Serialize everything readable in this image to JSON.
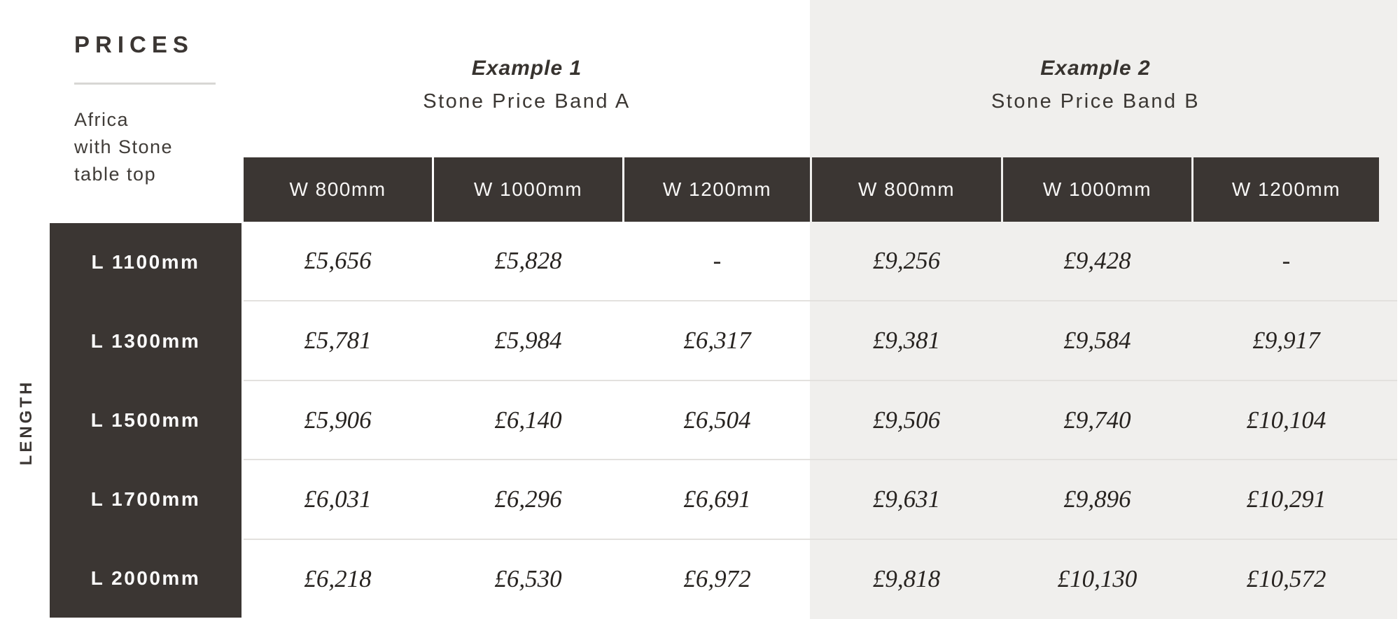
{
  "title_block": {
    "title": "PRICES",
    "product_lines": [
      "Africa",
      "with Stone",
      "table top"
    ]
  },
  "length_axis_label": "LENGTH",
  "bands": [
    {
      "example_label": "Example 1",
      "band_label": "Stone Price Band A",
      "columns": [
        "W 800mm",
        "W 1000mm",
        "W 1200mm"
      ]
    },
    {
      "example_label": "Example 2",
      "band_label": "Stone Price Band B",
      "columns": [
        "W 800mm",
        "W 1000mm",
        "W 1200mm"
      ]
    }
  ],
  "rows": [
    {
      "length": "L 1100mm",
      "band_a": [
        "£5,656",
        "£5,828",
        "-"
      ],
      "band_b": [
        "£9,256",
        "£9,428",
        "-"
      ]
    },
    {
      "length": "L 1300mm",
      "band_a": [
        "£5,781",
        "£5,984",
        "£6,317"
      ],
      "band_b": [
        "£9,381",
        "£9,584",
        "£9,917"
      ]
    },
    {
      "length": "L 1500mm",
      "band_a": [
        "£5,906",
        "£6,140",
        "£6,504"
      ],
      "band_b": [
        "£9,506",
        "£9,740",
        "£10,104"
      ]
    },
    {
      "length": "L 1700mm",
      "band_a": [
        "£6,031",
        "£6,296",
        "£6,691"
      ],
      "band_b": [
        "£9,631",
        "£9,896",
        "£10,291"
      ]
    },
    {
      "length": "L 2000mm",
      "band_a": [
        "£6,218",
        "£6,530",
        "£6,972"
      ],
      "band_b": [
        "£9,818",
        "£10,130",
        "£10,572"
      ]
    }
  ],
  "colors": {
    "dark": "#3b3633",
    "panel_gray": "#f0efed",
    "row_separator": "#e3e1de",
    "price_text": "#272320"
  }
}
